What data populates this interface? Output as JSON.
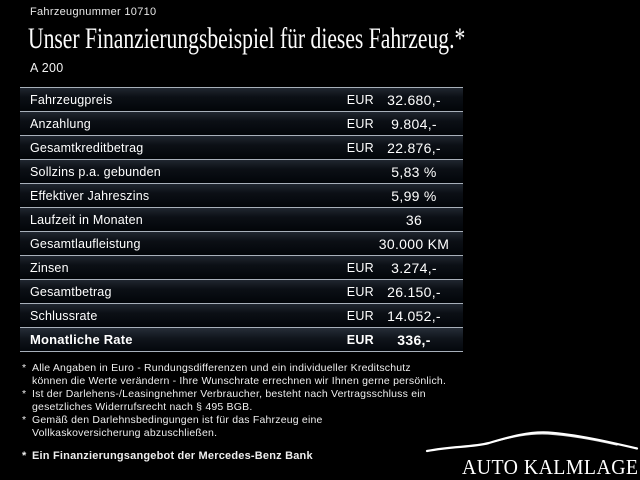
{
  "header": {
    "vehicle_number": "Fahrzeugnummer 10710",
    "title": "Unser Finanzierungsbeispiel für dieses Fahrzeug.*",
    "model": "A 200"
  },
  "table": {
    "rows": [
      {
        "label": "Fahrzeugpreis",
        "currency": "EUR",
        "value": "32.680,-",
        "bold": false
      },
      {
        "label": "Anzahlung",
        "currency": "EUR",
        "value": "9.804,-",
        "bold": false
      },
      {
        "label": "Gesamtkreditbetrag",
        "currency": "EUR",
        "value": "22.876,-",
        "bold": false
      },
      {
        "label": "Sollzins p.a. gebunden",
        "currency": "",
        "value": "5,83 %",
        "bold": false
      },
      {
        "label": "Effektiver Jahreszins",
        "currency": "",
        "value": "5,99 %",
        "bold": false
      },
      {
        "label": "Laufzeit in Monaten",
        "currency": "",
        "value": "36",
        "bold": false
      },
      {
        "label": "Gesamtlaufleistung",
        "currency": "",
        "value": "30.000 KM",
        "bold": false
      },
      {
        "label": "Zinsen",
        "currency": "EUR",
        "value": "3.274,-",
        "bold": false
      },
      {
        "label": "Gesamtbetrag",
        "currency": "EUR",
        "value": "26.150,-",
        "bold": false
      },
      {
        "label": "Schlussrate",
        "currency": "EUR",
        "value": "14.052,-",
        "bold": false
      },
      {
        "label": "Monatliche Rate",
        "currency": "EUR",
        "value": "336,-",
        "bold": true
      }
    ]
  },
  "footnotes": [
    {
      "marker": "*",
      "bold": false,
      "text": "Alle Angaben in Euro - Rundungsdifferenzen und ein individueller Kreditschutz\nkönnen die Werte verändern - Ihre Wunschrate errechnen wir Ihnen gerne persönlich."
    },
    {
      "marker": "*",
      "bold": false,
      "text": "Ist der Darlehens-/Leasingnehmer Verbraucher, besteht nach Vertragsschluss ein\ngesetzliches Widerrufsrecht nach § 495 BGB."
    },
    {
      "marker": "*",
      "bold": false,
      "text": "Gemäß den Darlehnsbedingungen ist für das Fahrzeug eine\nVollkaskoversicherung abzuschließen."
    },
    {
      "marker": "*",
      "bold": true,
      "text": "Ein Finanzierungsangebot der Mercedes-Benz Bank"
    }
  ],
  "logo": {
    "dealer_name": "AUTO KALMLAGE",
    "icon": "car-silhouette"
  },
  "colors": {
    "background": "#000000",
    "separator_line": "#a8b0ba",
    "text": "#ffffff"
  }
}
